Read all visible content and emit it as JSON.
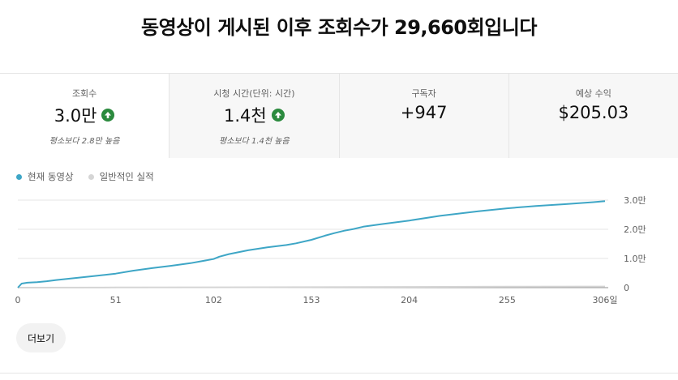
{
  "headline": "동영상이 게시된 이후 조회수가 29,660회입니다",
  "stats": [
    {
      "label": "조회수",
      "value": "3.0만",
      "trend": "up",
      "sub": "평소보다 2.8만 높음"
    },
    {
      "label": "시청 시간(단위: 시간)",
      "value": "1.4천",
      "trend": "up",
      "sub": "평소보다 1.4천 높음"
    },
    {
      "label": "구독자",
      "value": "+947"
    },
    {
      "label": "예상 수익",
      "value": "$205.03"
    }
  ],
  "legend": {
    "current": "현재 동영상",
    "typical": "일반적인 실적"
  },
  "colors": {
    "current": "#3ea6c6",
    "typical": "#d5d5d5",
    "trend_up": "#2b8a3e"
  },
  "more_button": "더보기",
  "chart_data": {
    "type": "line",
    "xlabel": "",
    "ylabel": "",
    "x_ticks": [
      "0",
      "51",
      "102",
      "153",
      "204",
      "255",
      "306일"
    ],
    "y_ticks": [
      "0",
      "1.0만",
      "2.0만",
      "3.0만"
    ],
    "xlim": [
      0,
      306
    ],
    "ylim": [
      0,
      30000
    ],
    "grid": true,
    "legend_position": "top-left",
    "series": [
      {
        "name": "현재 동영상",
        "x": [
          0,
          2,
          5,
          10,
          15,
          20,
          30,
          40,
          51,
          60,
          70,
          80,
          90,
          102,
          105,
          110,
          120,
          130,
          140,
          145,
          153,
          160,
          165,
          170,
          175,
          180,
          190,
          204,
          220,
          240,
          255,
          270,
          285,
          300,
          306
        ],
        "y": [
          0,
          1400,
          1700,
          1900,
          2200,
          2600,
          3300,
          4000,
          4800,
          5800,
          6700,
          7500,
          8400,
          9800,
          10600,
          11500,
          12800,
          13800,
          14600,
          15200,
          16400,
          17800,
          18700,
          19500,
          20100,
          20900,
          21800,
          23000,
          24600,
          26200,
          27200,
          28000,
          28600,
          29300,
          29660
        ]
      },
      {
        "name": "일반적인 실적",
        "x": [
          0,
          51,
          102,
          153,
          204,
          255,
          306
        ],
        "y": [
          0,
          60,
          120,
          180,
          250,
          320,
          400
        ]
      }
    ]
  }
}
